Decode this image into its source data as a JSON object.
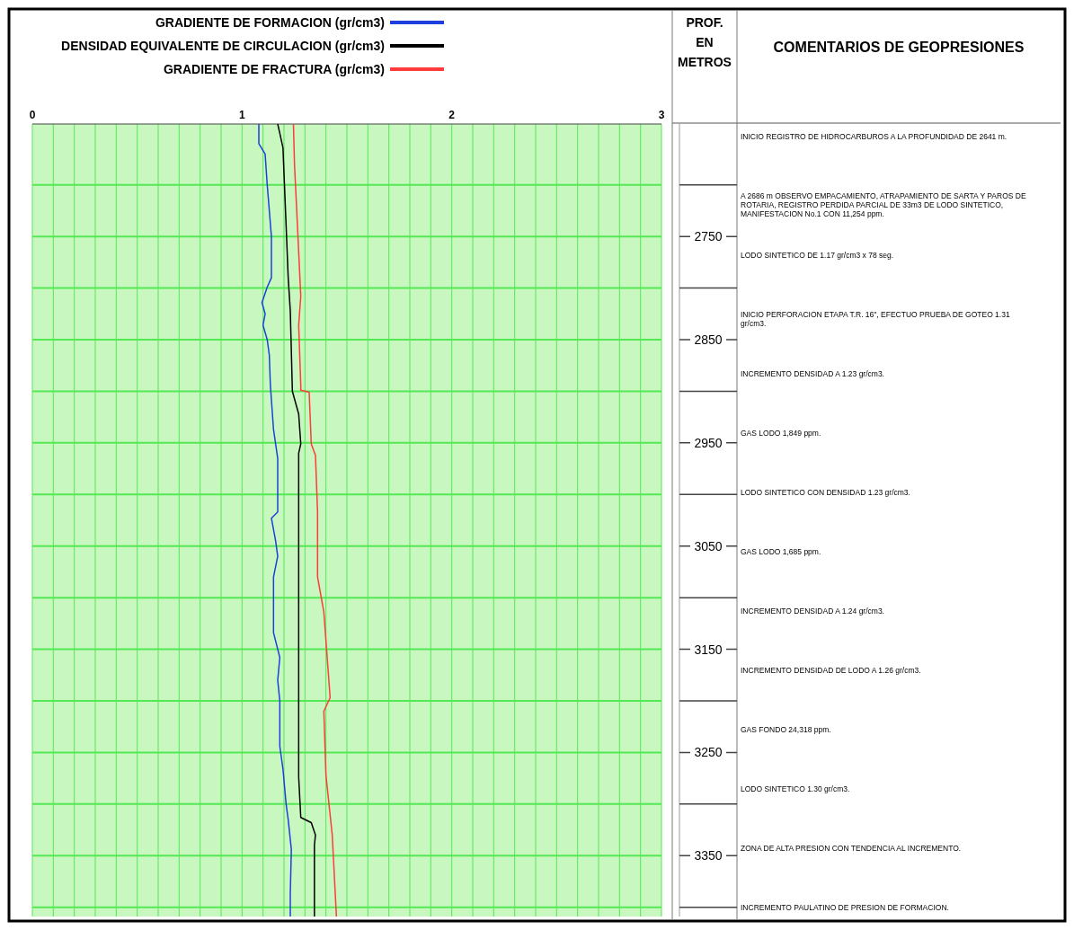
{
  "chart_data": {
    "type": "line",
    "title": "COMENTARIOS DE GEOPRESIONES",
    "ylabel": "PROF. EN METROS",
    "legend": "top",
    "grid": true,
    "xlim": [
      0,
      3
    ],
    "ylim": [
      3409,
      2641
    ],
    "xticks": [
      0,
      {
        "value": 0.1,
        "label": null
      },
      {
        "value": 0.2,
        "label": null
      },
      {
        "value": 0.3,
        "label": null
      },
      {
        "value": 0.4,
        "label": null
      },
      {
        "value": 0.5,
        "label": null
      },
      {
        "value": 0.6,
        "label": null
      },
      {
        "value": 0.7,
        "label": null
      },
      {
        "value": 0.8,
        "label": null
      },
      {
        "value": 0.9,
        "label": null
      },
      1,
      {
        "value": 1.1,
        "label": null
      },
      {
        "value": 1.2,
        "label": null
      },
      {
        "value": 1.3,
        "label": null
      },
      {
        "value": 1.4,
        "label": null
      },
      {
        "value": 1.5,
        "label": null
      },
      {
        "value": 1.6,
        "label": null
      },
      {
        "value": 1.7,
        "label": null
      },
      {
        "value": 1.8,
        "label": null
      },
      {
        "value": 1.9,
        "label": null
      },
      2,
      {
        "value": 2.1,
        "label": null
      },
      {
        "value": 2.2,
        "label": null
      },
      {
        "value": 2.3,
        "label": null
      },
      {
        "value": 2.4,
        "label": null
      },
      {
        "value": 2.5,
        "label": null
      },
      {
        "value": 2.6,
        "label": null
      },
      {
        "value": 2.7,
        "label": null
      },
      {
        "value": 2.8,
        "label": null
      },
      {
        "value": 2.9,
        "label": null
      },
      3
    ],
    "yticks": [
      {
        "value": 2700,
        "label": null
      },
      2750,
      {
        "value": 2800,
        "label": null
      },
      2850,
      {
        "value": 2900,
        "label": null
      },
      2950,
      {
        "value": 3000,
        "label": null
      },
      3050,
      {
        "value": 3100,
        "label": null
      },
      3150,
      {
        "value": 3200,
        "label": null
      },
      3250,
      {
        "value": 3300,
        "label": null
      },
      3350,
      {
        "value": 3400,
        "label": null
      }
    ],
    "series": [
      {
        "name": "GRADIENTE DE FORMACION (gr/cm3)",
        "color": "#1f3fdc",
        "x": [
          1.08,
          1.08,
          1.11,
          1.12,
          1.14,
          1.14,
          1.12,
          1.095,
          1.11,
          1.1,
          1.12,
          1.13,
          1.135,
          1.15,
          1.17,
          1.17,
          1.14,
          1.16,
          1.17,
          1.15,
          1.15,
          1.15,
          1.18,
          1.17,
          1.18,
          1.18,
          1.195,
          1.21,
          1.22,
          1.235,
          1.23,
          1.23
        ],
        "values": [
          2641,
          2660,
          2670,
          2700,
          2750,
          2790,
          2799,
          2814,
          2825,
          2836,
          2850,
          2865,
          2894,
          2937,
          2965,
          3017,
          3023,
          3045,
          3060,
          3080,
          3100,
          3134,
          3158,
          3180,
          3200,
          3244,
          3266,
          3300,
          3315,
          3344,
          3387,
          3409
        ]
      },
      {
        "name": "DENSIDAD EQUIVALENTE DE CIRCULACION (gr/cm3)",
        "color": "#000000",
        "x": [
          1.17,
          1.18,
          1.195,
          1.21,
          1.22,
          1.23,
          1.24,
          1.27,
          1.28,
          1.27,
          1.27,
          1.28,
          1.33,
          1.35,
          1.345,
          1.345
        ],
        "values": [
          2641,
          2650,
          2664,
          2739,
          2790,
          2822,
          2900,
          2922,
          2951,
          2960,
          3274,
          3313,
          3318,
          3330,
          3340,
          3409
        ]
      },
      {
        "name": "GRADIENTE DE FRACTURA (gr/cm3)",
        "color": "#ff3b3b",
        "x": [
          1.245,
          1.25,
          1.26,
          1.28,
          1.27,
          1.28,
          1.28,
          1.32,
          1.33,
          1.35,
          1.36,
          1.36,
          1.39,
          1.42,
          1.39,
          1.4,
          1.43,
          1.45
        ],
        "values": [
          2641,
          2680,
          2722,
          2808,
          2836,
          2894,
          2899,
          2901,
          2951,
          2962,
          3017,
          3080,
          3114,
          3197,
          3210,
          3272,
          3330,
          3409
        ]
      }
    ],
    "annotations": [
      "INICIO REGISTRO DE HIDROCARBUROS A LA PROFUNDIDAD DE 2641 m.",
      "A 2686 m OBSERVO EMPACAMIENTO, ATRAPAMIENTO DE SARTA Y PAROS DE ROTARIA, REGISTRO PERDIDA PARCIAL DE 33m3 DE LODO SINTETICO, MANIFESTACION No.1 CON 11,254 ppm.",
      "LODO SINTETICO DE 1.17 gr/cm3 x 78 seg.",
      "INICIO PERFORACION ETAPA T.R. 16\", EFECTUO PRUEBA DE GOTEO 1.31 gr/cm3.",
      "INCREMENTO DENSIDAD A 1.23 gr/cm3.",
      "GAS LODO 1,849 ppm.",
      "LODO SINTETICO CON DENSIDAD 1.23 gr/cm3.",
      "GAS LODO 1,685 ppm.",
      "INCREMENTO DENSIDAD A 1.24 gr/cm3.",
      "INCREMENTO DENSIDAD DE LODO A 1.26 gr/cm3.",
      "GAS FONDO 24,318 ppm.",
      "LODO SINTETICO 1.30 gr/cm3.",
      "ZONA DE ALTA PRESION CON TENDENCIA AL INCREMENTO.",
      "INCREMENTO PAULATINO DE PRESION DE FORMACION."
    ]
  }
}
